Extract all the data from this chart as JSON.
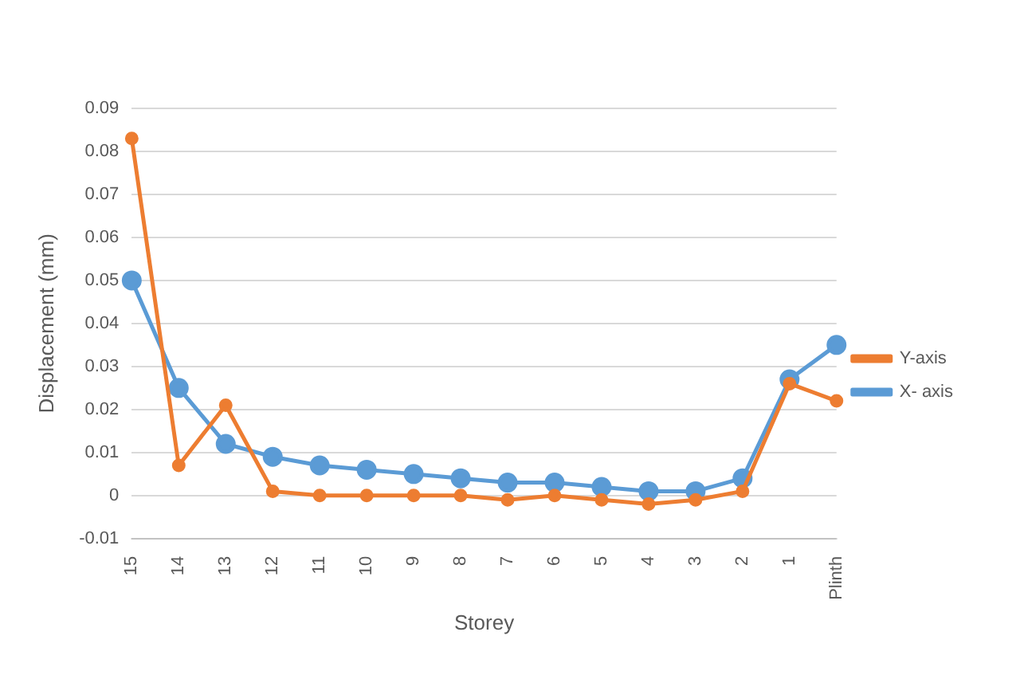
{
  "chart_data": {
    "type": "line",
    "xlabel": "Storey",
    "ylabel": "Displacement (mm)",
    "categories": [
      "15",
      "14",
      "13",
      "12",
      "11",
      "10",
      "9",
      "8",
      "7",
      "6",
      "5",
      "4",
      "3",
      "2",
      "1",
      "Plinth"
    ],
    "series": [
      {
        "name": "Y-axis",
        "color": "#ed7d31",
        "values": [
          0.083,
          0.007,
          0.021,
          0.001,
          0,
          0,
          0,
          0,
          -0.001,
          0,
          -0.001,
          -0.002,
          -0.001,
          0.001,
          0.026,
          0.022
        ]
      },
      {
        "name": "X- axis",
        "color": "#5b9bd5",
        "values": [
          0.05,
          0.025,
          0.012,
          0.009,
          0.007,
          0.006,
          0.005,
          0.004,
          0.003,
          0.003,
          0.002,
          0.001,
          0.001,
          0.004,
          0.027,
          0.035
        ]
      }
    ],
    "ylim": [
      -0.01,
      0.09
    ],
    "yticks": [
      -0.01,
      0,
      0.01,
      0.02,
      0.03,
      0.04,
      0.05,
      0.06,
      0.07,
      0.08,
      0.09
    ],
    "grid": "y",
    "legend": "right",
    "marker": "circle",
    "line_style": "solid"
  }
}
